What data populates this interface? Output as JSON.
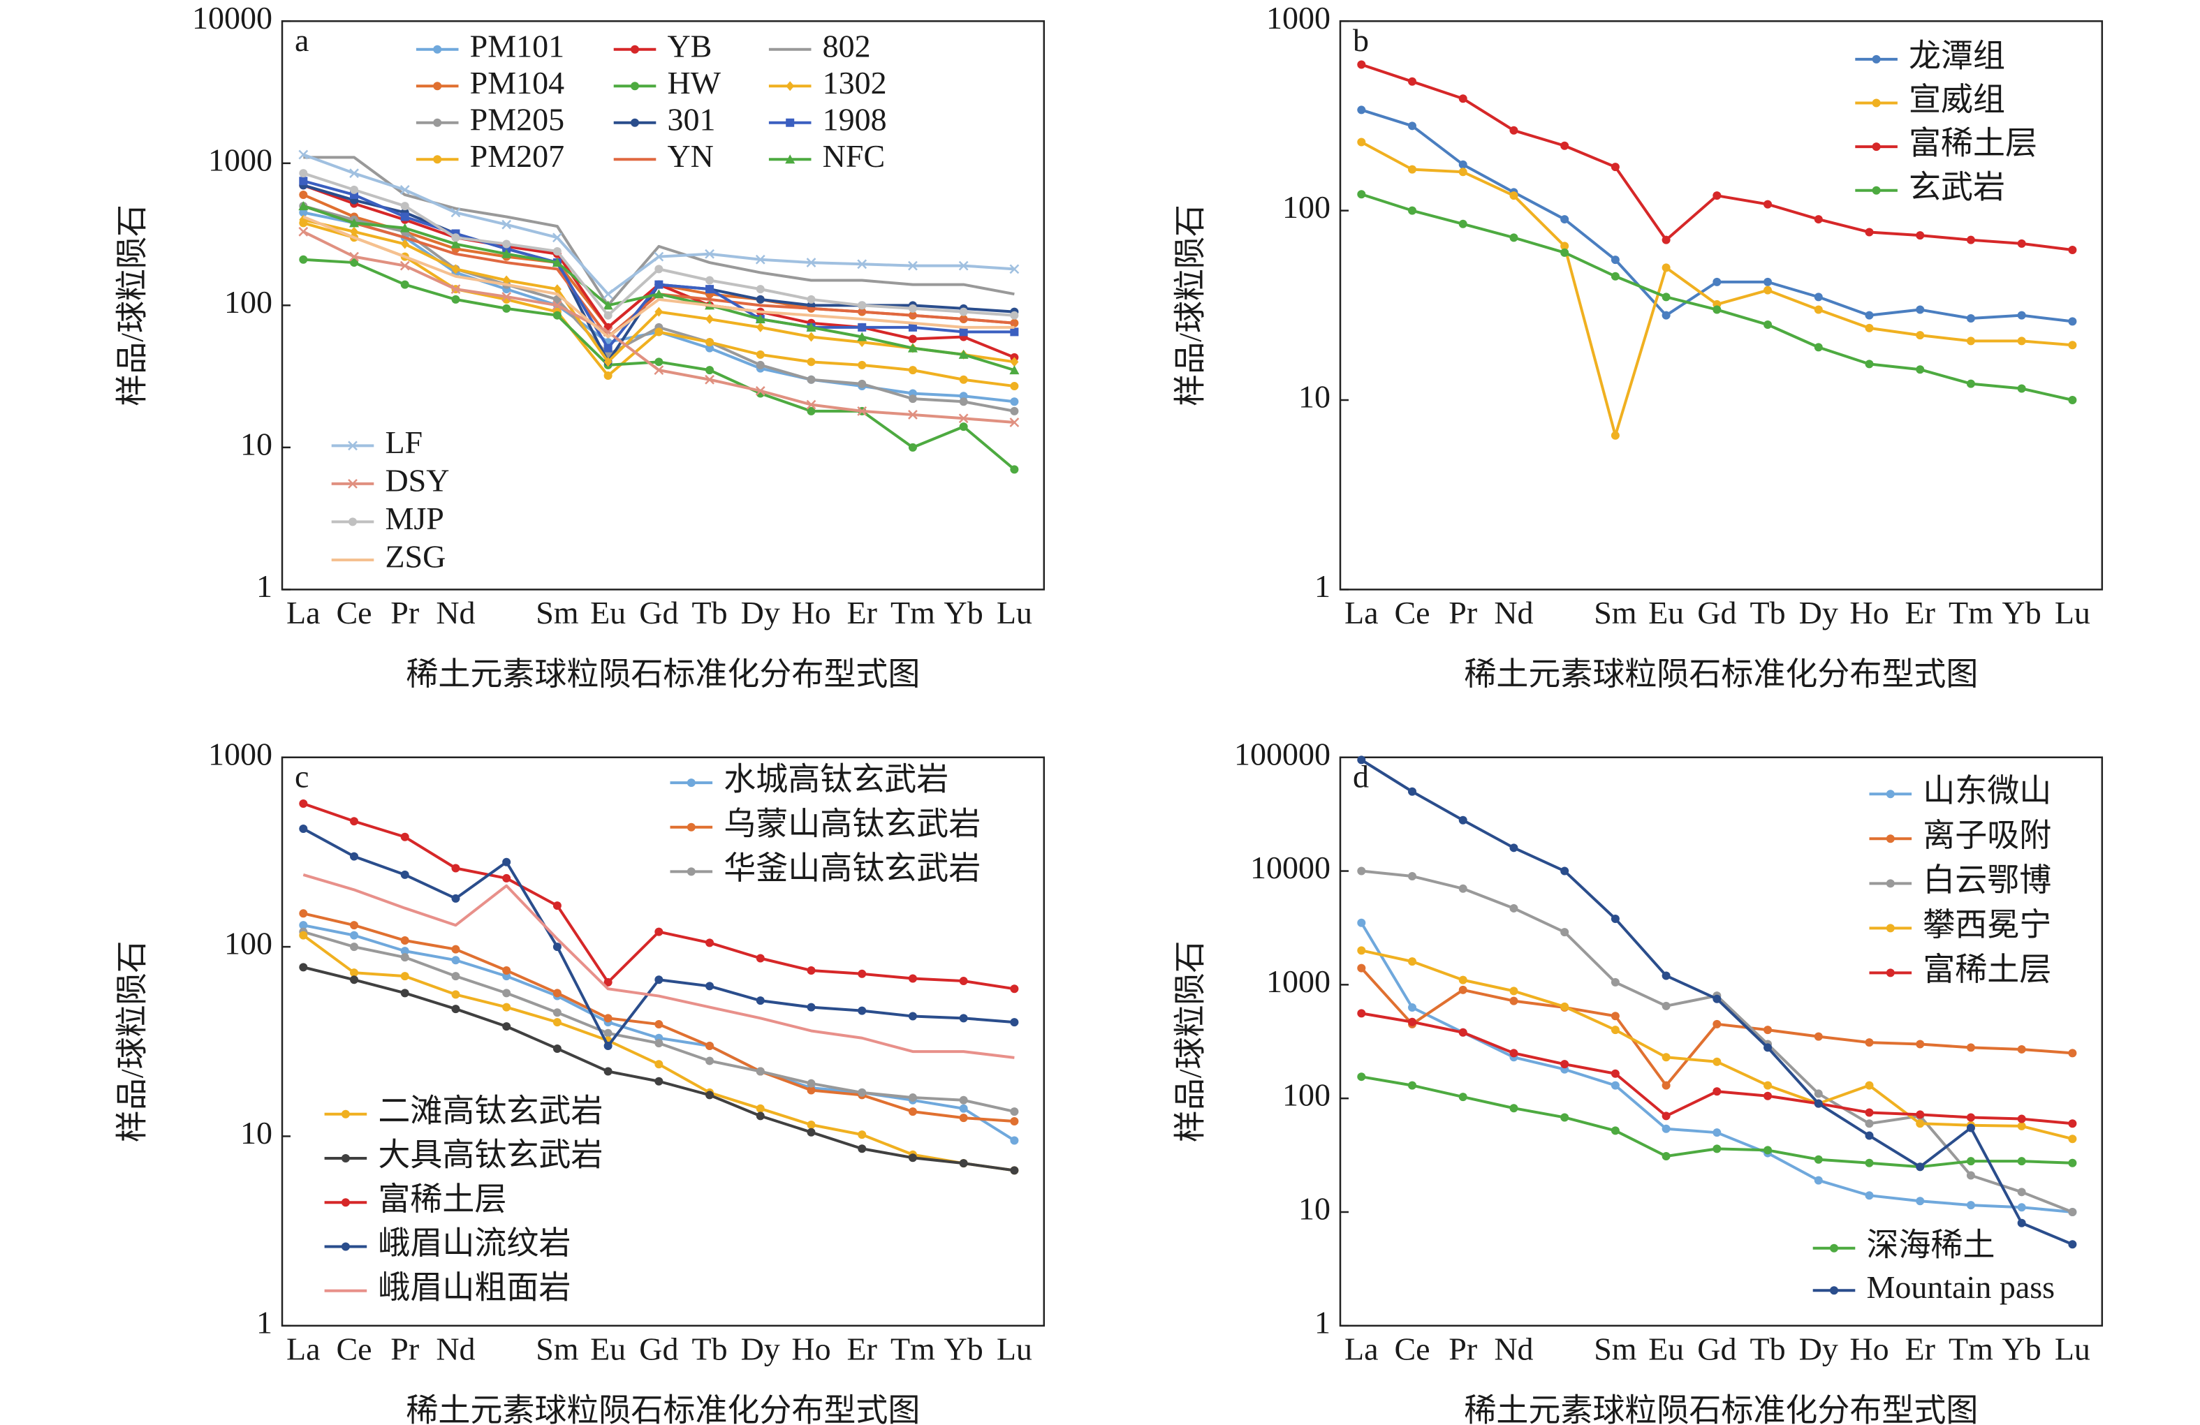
{
  "chart_data": [
    {
      "type": "line",
      "panel": "a",
      "xlabel": "稀土元素球粒陨石标准化分布型式图",
      "ylabel": "样品/球粒陨石",
      "categories": [
        "La",
        "Ce",
        "Pr",
        "Nd",
        null,
        "Sm",
        "Eu",
        "Gd",
        "Tb",
        "Dy",
        "Ho",
        "Er",
        "Tm",
        "Yb",
        "Lu"
      ],
      "ylim": [
        1,
        10000
      ],
      "yticks": [
        1,
        10,
        100,
        1000,
        10000
      ],
      "yscale": "log",
      "series": [
        {
          "name": "PM101",
          "color": "#6fa8dc",
          "marker": "o",
          "values": [
            450,
            380,
            300,
            170,
            130,
            100,
            55,
            65,
            50,
            36,
            30,
            27,
            24,
            23,
            21
          ]
        },
        {
          "name": "PM104",
          "color": "#e07030",
          "marker": "o",
          "values": [
            600,
            420,
            330,
            250,
            220,
            200,
            70,
            140,
            120,
            110,
            95,
            90,
            85,
            80,
            75
          ]
        },
        {
          "name": "PM205",
          "color": "#999999",
          "marker": "o",
          "values": [
            500,
            400,
            330,
            180,
            140,
            110,
            45,
            70,
            55,
            38,
            30,
            28,
            22,
            21,
            18
          ]
        },
        {
          "name": "PM207",
          "color": "#f0b020",
          "marker": "o",
          "values": [
            380,
            300,
            220,
            130,
            110,
            90,
            32,
            65,
            55,
            45,
            40,
            38,
            35,
            30,
            27
          ]
        },
        {
          "name": "YB",
          "color": "#d62728",
          "marker": "o",
          "values": [
            700,
            520,
            400,
            300,
            260,
            230,
            70,
            140,
            100,
            90,
            75,
            70,
            58,
            60,
            43
          ]
        },
        {
          "name": "HW",
          "color": "#4daa40",
          "marker": "o",
          "values": [
            210,
            200,
            140,
            110,
            95,
            85,
            38,
            40,
            35,
            24,
            18,
            18,
            10,
            14,
            7
          ]
        },
        {
          "name": "301",
          "color": "#2a4d8c",
          "marker": "o",
          "values": [
            700,
            550,
            450,
            320,
            250,
            200,
            40,
            140,
            130,
            110,
            100,
            100,
            100,
            95,
            90
          ]
        },
        {
          "name": "YN",
          "color": "#e06840",
          "marker": "none",
          "values": [
            500,
            380,
            300,
            230,
            200,
            180,
            60,
            120,
            110,
            100,
            95,
            90,
            85,
            80,
            75
          ]
        },
        {
          "name": "802",
          "color": "#999999",
          "marker": "none",
          "values": [
            1100,
            1100,
            600,
            480,
            420,
            360,
            100,
            260,
            200,
            170,
            150,
            150,
            140,
            140,
            120
          ]
        },
        {
          "name": "1302",
          "color": "#f0b020",
          "marker": "d",
          "values": [
            400,
            330,
            270,
            180,
            150,
            130,
            40,
            90,
            80,
            70,
            60,
            55,
            50,
            45,
            40
          ]
        },
        {
          "name": "1908",
          "color": "#3b5fc0",
          "marker": "s",
          "values": [
            750,
            600,
            420,
            320,
            250,
            200,
            50,
            140,
            130,
            80,
            70,
            70,
            70,
            65,
            65
          ]
        },
        {
          "name": "NFC",
          "color": "#4daa40",
          "marker": "^",
          "values": [
            500,
            380,
            350,
            270,
            230,
            200,
            100,
            120,
            100,
            80,
            70,
            60,
            50,
            45,
            35
          ]
        },
        {
          "name": "LF",
          "color": "#a0c0e0",
          "marker": "x",
          "values": [
            1150,
            850,
            650,
            450,
            370,
            300,
            120,
            220,
            230,
            210,
            200,
            195,
            190,
            190,
            180
          ]
        },
        {
          "name": "DSY",
          "color": "#e09080",
          "marker": "x",
          "values": [
            330,
            220,
            190,
            130,
            115,
            100,
            65,
            35,
            30,
            25,
            20,
            18,
            17,
            16,
            15
          ]
        },
        {
          "name": "MJP",
          "color": "#c0c0c0",
          "marker": "o",
          "values": [
            850,
            650,
            500,
            300,
            270,
            240,
            85,
            180,
            150,
            130,
            110,
            100,
            95,
            90,
            85
          ]
        },
        {
          "name": "ZSG",
          "color": "#f5c090",
          "marker": "none",
          "values": [
            420,
            300,
            220,
            160,
            140,
            120,
            60,
            110,
            100,
            90,
            85,
            80,
            75,
            70,
            70
          ]
        }
      ]
    },
    {
      "type": "line",
      "panel": "b",
      "xlabel": "稀土元素球粒陨石标准化分布型式图",
      "ylabel": "样品/球粒陨石",
      "categories": [
        "La",
        "Ce",
        "Pr",
        "Nd",
        null,
        "Sm",
        "Eu",
        "Gd",
        "Tb",
        "Dy",
        "Ho",
        "Er",
        "Tm",
        "Yb",
        "Lu"
      ],
      "ylim": [
        1,
        1000
      ],
      "yticks": [
        1,
        10,
        100,
        1000
      ],
      "yscale": "log",
      "series": [
        {
          "name": "龙潭组",
          "color": "#4a7ec0",
          "marker": "o",
          "values": [
            340,
            280,
            175,
            125,
            90,
            55,
            28,
            42,
            42,
            35,
            28,
            30,
            27,
            28,
            26
          ]
        },
        {
          "name": "宣威组",
          "color": "#f0b020",
          "marker": "o",
          "values": [
            230,
            165,
            160,
            120,
            65,
            6.5,
            50,
            32,
            38,
            30,
            24,
            22,
            20.5,
            20.5,
            19.5
          ]
        },
        {
          "name": "富稀土层",
          "color": "#d62728",
          "marker": "o",
          "values": [
            590,
            480,
            390,
            265,
            220,
            170,
            70,
            120,
            108,
            90,
            77,
            74,
            70,
            67,
            62
          ]
        },
        {
          "name": "玄武岩",
          "color": "#4daa40",
          "marker": "o",
          "values": [
            122,
            100,
            85,
            72,
            60,
            45,
            35,
            30,
            25,
            19,
            15.5,
            14.5,
            12.2,
            11.5,
            10
          ]
        }
      ]
    },
    {
      "type": "line",
      "panel": "c",
      "xlabel": "稀土元素球粒陨石标准化分布型式图",
      "ylabel": "样品/球粒陨石",
      "categories": [
        "La",
        "Ce",
        "Pr",
        "Nd",
        null,
        "Sm",
        "Eu",
        "Gd",
        "Tb",
        "Dy",
        "Ho",
        "Er",
        "Tm",
        "Yb",
        "Lu"
      ],
      "ylim": [
        1,
        1000
      ],
      "yticks": [
        1,
        10,
        100,
        1000
      ],
      "yscale": "log",
      "series": [
        {
          "name": "水城高钛玄武岩",
          "color": "#6fa8dc",
          "marker": "o",
          "values": [
            130,
            115,
            95,
            85,
            70,
            55,
            40,
            33,
            30,
            22,
            18,
            17,
            15.5,
            14,
            9.5
          ]
        },
        {
          "name": "乌蒙山高钛玄武岩",
          "color": "#e07030",
          "marker": "o",
          "values": [
            150,
            130,
            108,
            97,
            75,
            57,
            42,
            39,
            30,
            22,
            17.5,
            16.5,
            13.5,
            12.5,
            12
          ]
        },
        {
          "name": "华釜山高钛玄武岩",
          "color": "#999999",
          "marker": "o",
          "values": [
            120,
            100,
            88,
            70,
            57,
            45,
            35,
            31,
            25,
            22,
            19,
            17,
            16,
            15.5,
            13.5
          ]
        },
        {
          "name": "二滩高钛玄武岩",
          "color": "#f0b020",
          "marker": "o",
          "values": [
            115,
            73,
            70,
            56,
            48,
            40,
            32,
            24,
            17,
            14,
            11.5,
            10.2,
            8,
            7.2,
            6.6
          ]
        },
        {
          "name": "大具高钛玄武岩",
          "color": "#404040",
          "marker": "o",
          "values": [
            78,
            67,
            57,
            47,
            38,
            29,
            22,
            19.5,
            16.5,
            12.8,
            10.5,
            8.6,
            7.7,
            7.2,
            6.6
          ]
        },
        {
          "name": "富稀土层",
          "color": "#d62728",
          "marker": "o",
          "values": [
            570,
            460,
            380,
            260,
            230,
            165,
            65,
            120,
            105,
            87,
            75,
            72,
            68,
            66,
            60
          ]
        },
        {
          "name": "峨眉山流纹岩",
          "color": "#2a4d8c",
          "marker": "o",
          "values": [
            420,
            300,
            240,
            180,
            280,
            100,
            30,
            67,
            62,
            52,
            48,
            46,
            43,
            42,
            40
          ]
        },
        {
          "name": "峨眉山粗面岩",
          "color": "#e8908a",
          "marker": "none",
          "values": [
            240,
            200,
            160,
            130,
            210,
            110,
            60,
            55,
            48,
            42,
            36,
            33,
            28,
            28,
            26
          ]
        }
      ]
    },
    {
      "type": "line",
      "panel": "d",
      "xlabel": "稀土元素球粒陨石标准化分布型式图",
      "ylabel": "样品/球粒陨石",
      "categories": [
        "La",
        "Ce",
        "Pr",
        "Nd",
        null,
        "Sm",
        "Eu",
        "Gd",
        "Tb",
        "Dy",
        "Ho",
        "Er",
        "Tm",
        "Yb",
        "Lu"
      ],
      "ylim": [
        1,
        100000
      ],
      "yticks": [
        1,
        10,
        100,
        1000,
        10000,
        100000
      ],
      "yscale": "log",
      "series": [
        {
          "name": "山东微山",
          "color": "#6fa8dc",
          "marker": "o",
          "values": [
            3500,
            630,
            380,
            230,
            180,
            130,
            54,
            50,
            33,
            19,
            14,
            12.5,
            11.5,
            11,
            10
          ]
        },
        {
          "name": "离子吸附",
          "color": "#e07030",
          "marker": "o",
          "values": [
            1400,
            450,
            900,
            720,
            630,
            530,
            130,
            450,
            400,
            350,
            310,
            300,
            280,
            270,
            250
          ]
        },
        {
          "name": "白云鄂博",
          "color": "#999999",
          "marker": "o",
          "values": [
            10000,
            9000,
            7000,
            4700,
            2900,
            1050,
            650,
            800,
            300,
            110,
            60,
            70,
            21,
            15,
            10
          ]
        },
        {
          "name": "攀西冕宁",
          "color": "#f0b020",
          "marker": "o",
          "values": [
            2000,
            1600,
            1100,
            880,
            640,
            400,
            230,
            210,
            130,
            90,
            130,
            60,
            58,
            57,
            44
          ]
        },
        {
          "name": "富稀土层",
          "color": "#d62728",
          "marker": "o",
          "values": [
            560,
            470,
            380,
            250,
            200,
            165,
            70,
            115,
            105,
            90,
            75,
            72,
            68,
            66,
            60
          ]
        },
        {
          "name": "深海稀土",
          "color": "#4daa40",
          "marker": "o",
          "values": [
            155,
            130,
            103,
            82,
            68,
            52,
            31,
            36,
            35,
            29,
            27,
            25,
            28,
            28,
            27
          ]
        },
        {
          "name": "Mountain pass",
          "color": "#2a4d8c",
          "marker": "o",
          "values": [
            95000,
            50000,
            28000,
            16000,
            10000,
            3800,
            1200,
            750,
            280,
            90,
            47,
            25,
            55,
            8,
            5.2
          ]
        }
      ]
    }
  ]
}
